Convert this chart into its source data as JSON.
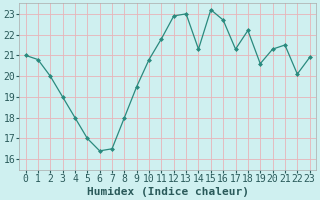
{
  "x": [
    0,
    1,
    2,
    3,
    4,
    5,
    6,
    7,
    8,
    9,
    10,
    11,
    12,
    13,
    14,
    15,
    16,
    17,
    18,
    19,
    20,
    21,
    22,
    23
  ],
  "y": [
    21.0,
    20.8,
    20.0,
    19.0,
    18.0,
    17.0,
    16.4,
    16.5,
    18.0,
    19.5,
    20.8,
    21.8,
    22.9,
    23.0,
    21.3,
    23.2,
    22.7,
    21.3,
    22.2,
    20.6,
    21.3,
    21.5,
    20.1,
    20.9
  ],
  "line_color": "#2a8a7e",
  "marker_color": "#2a8a7e",
  "bg_color": "#cff0f0",
  "grid_color": "#e8b4b8",
  "xlabel": "Humidex (Indice chaleur)",
  "ylim": [
    15.5,
    23.5
  ],
  "xlim": [
    -0.5,
    23.5
  ],
  "yticks": [
    16,
    17,
    18,
    19,
    20,
    21,
    22,
    23
  ],
  "xtick_labels": [
    "0",
    "1",
    "2",
    "3",
    "4",
    "5",
    "6",
    "7",
    "8",
    "9",
    "10",
    "11",
    "12",
    "13",
    "14",
    "15",
    "16",
    "17",
    "18",
    "19",
    "20",
    "21",
    "22",
    "23"
  ],
  "xlabel_fontsize": 8,
  "tick_fontsize": 7
}
